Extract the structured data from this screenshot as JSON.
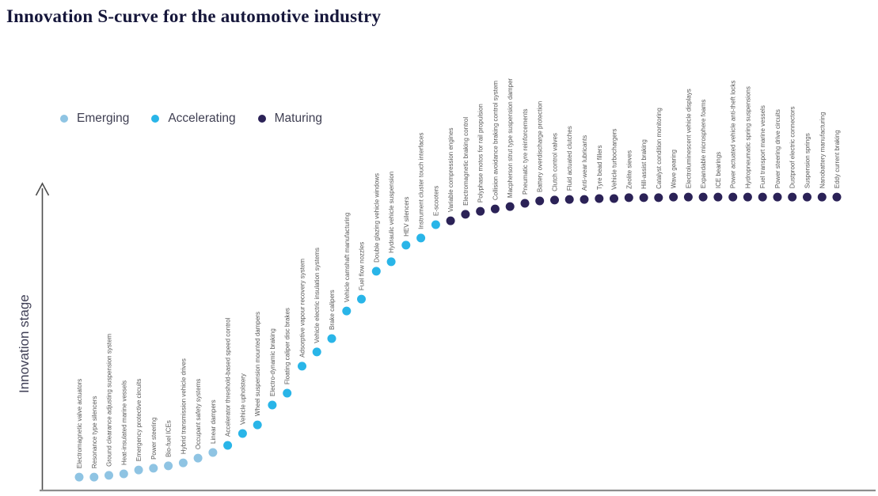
{
  "title": "Innovation S-curve for the automotive industry",
  "chart_data": {
    "type": "scatter",
    "title": "Innovation S-curve for the automotive industry",
    "xlabel": "",
    "ylabel": "Innovation stage",
    "legend_position": "top-left",
    "axis_ticks": "none",
    "legend": [
      {
        "label": "Emerging",
        "color": "#8FC4E3"
      },
      {
        "label": "Accelerating",
        "color": "#29B5E8"
      },
      {
        "label": "Maturing",
        "color": "#2B2257"
      }
    ],
    "stage_colors": {
      "Emerging": "#8FC4E3",
      "Accelerating": "#29B5E8",
      "Maturing": "#2B2257"
    },
    "value_meaning": "estimated innovation stage height, percent of y-axis",
    "points": [
      {
        "label": "Electromagnetic valve actuators",
        "stage": "Emerging",
        "value": 4.5
      },
      {
        "label": "Resonance type silencers",
        "stage": "Emerging",
        "value": 4.5
      },
      {
        "label": "Ground clearance adjusting suspension system",
        "stage": "Emerging",
        "value": 5.1
      },
      {
        "label": "Heat-insulated marine vessels",
        "stage": "Emerging",
        "value": 5.6
      },
      {
        "label": "Emergency protective circuits",
        "stage": "Emerging",
        "value": 6.9
      },
      {
        "label": "Power steering",
        "stage": "Emerging",
        "value": 7.5
      },
      {
        "label": "Bio-fuel ICEs",
        "stage": "Emerging",
        "value": 8.3
      },
      {
        "label": "Hybrid transmission vehicle drives",
        "stage": "Emerging",
        "value": 9.3
      },
      {
        "label": "Occupant safety systems",
        "stage": "Emerging",
        "value": 10.9
      },
      {
        "label": "Linear dampers",
        "stage": "Emerging",
        "value": 12.8
      },
      {
        "label": "Accelerator threshold-based speed control",
        "stage": "Accelerating",
        "value": 15.2
      },
      {
        "label": "Vehicle upholstery",
        "stage": "Accelerating",
        "value": 19.2
      },
      {
        "label": "Wheel suspension mounted dampers",
        "stage": "Accelerating",
        "value": 22.1
      },
      {
        "label": "Electro-dynamic braking",
        "stage": "Accelerating",
        "value": 28.8
      },
      {
        "label": "Floating caliper disc brakes",
        "stage": "Accelerating",
        "value": 32.8
      },
      {
        "label": "Adsorptive vapour recovery system",
        "stage": "Accelerating",
        "value": 41.9
      },
      {
        "label": "Vehicle electric insulation systems",
        "stage": "Accelerating",
        "value": 46.7
      },
      {
        "label": "Brake calipers",
        "stage": "Accelerating",
        "value": 51.2
      },
      {
        "label": "Vehicle camshaft manufacturing",
        "stage": "Accelerating",
        "value": 60.5
      },
      {
        "label": "Fuel flow nozzles",
        "stage": "Accelerating",
        "value": 64.5
      },
      {
        "label": "Double glazing vehicle windows",
        "stage": "Accelerating",
        "value": 73.9
      },
      {
        "label": "Hydraulic vehicle suspension",
        "stage": "Accelerating",
        "value": 77.1
      },
      {
        "label": "HEV silencers",
        "stage": "Accelerating",
        "value": 82.7
      },
      {
        "label": "Instrument cluster touch interfaces",
        "stage": "Accelerating",
        "value": 85.1
      },
      {
        "label": "E-scooters",
        "stage": "Accelerating",
        "value": 89.6
      },
      {
        "label": "Variable compression engines",
        "stage": "Maturing",
        "value": 90.9
      },
      {
        "label": "Electromagnetic braking control",
        "stage": "Maturing",
        "value": 93.1
      },
      {
        "label": "Polyphase motos for rail propulsion",
        "stage": "Maturing",
        "value": 94.1
      },
      {
        "label": "Collision avoidance braking control system",
        "stage": "Maturing",
        "value": 94.9
      },
      {
        "label": "Macpherson strut type suspension damper",
        "stage": "Maturing",
        "value": 95.7
      },
      {
        "label": "Pneumatic tyre reinforcements",
        "stage": "Maturing",
        "value": 96.8
      },
      {
        "label": "Battery overdischarge protection",
        "stage": "Maturing",
        "value": 97.6
      },
      {
        "label": "Clutch control valves",
        "stage": "Maturing",
        "value": 97.9
      },
      {
        "label": "Fluid actuated clutches",
        "stage": "Maturing",
        "value": 98.1
      },
      {
        "label": "Anti-wear lubricants",
        "stage": "Maturing",
        "value": 98.1
      },
      {
        "label": "Tyre bead fillers",
        "stage": "Maturing",
        "value": 98.4
      },
      {
        "label": "Vehicle turbochargers",
        "stage": "Maturing",
        "value": 98.4
      },
      {
        "label": "Zeolite sieves",
        "stage": "Maturing",
        "value": 98.7
      },
      {
        "label": "Hill-assist braking",
        "stage": "Maturing",
        "value": 98.7
      },
      {
        "label": "Catalyst condition monitoring",
        "stage": "Maturing",
        "value": 98.7
      },
      {
        "label": "Wave gearing",
        "stage": "Maturing",
        "value": 98.9
      },
      {
        "label": "Electroluminescent vehicle displays",
        "stage": "Maturing",
        "value": 98.9
      },
      {
        "label": "Expandable microsphere foams",
        "stage": "Maturing",
        "value": 98.9
      },
      {
        "label": "ICE bearings",
        "stage": "Maturing",
        "value": 98.9
      },
      {
        "label": "Power actuated vehicle anti-theft locks",
        "stage": "Maturing",
        "value": 98.9
      },
      {
        "label": "Hydropneumatic spring suspensions",
        "stage": "Maturing",
        "value": 98.9
      },
      {
        "label": "Fuel transport marine vessels",
        "stage": "Maturing",
        "value": 98.9
      },
      {
        "label": "Power steering drive circuits",
        "stage": "Maturing",
        "value": 98.9
      },
      {
        "label": "Dustproof electric connectors",
        "stage": "Maturing",
        "value": 98.9
      },
      {
        "label": "Suspension springs",
        "stage": "Maturing",
        "value": 98.9
      },
      {
        "label": "Nanobattery manufacturing",
        "stage": "Maturing",
        "value": 98.9
      },
      {
        "label": "Eddy current braking",
        "stage": "Maturing",
        "value": 98.9
      }
    ]
  }
}
